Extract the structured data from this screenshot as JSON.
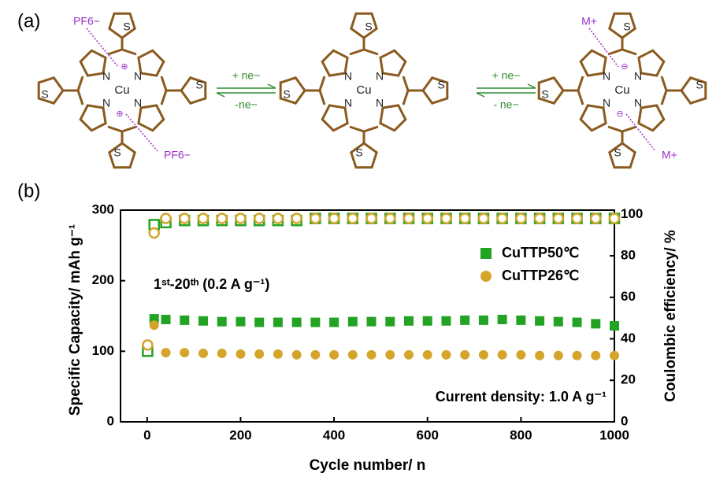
{
  "diagram": {
    "label": "(a)",
    "atoms": {
      "metal": "Cu",
      "nitrogen": "N",
      "sulfur": "S"
    },
    "counter_ions": {
      "anion": "PF6−",
      "cation": "M+"
    },
    "charges": {
      "positive": "⊕",
      "negative": "⊖"
    },
    "arrows": [
      {
        "forward": "+ ne−",
        "backward": "-ne−"
      },
      {
        "forward": "+ ne−",
        "backward": "- ne−"
      }
    ]
  },
  "chart_data": {
    "type": "scatter",
    "panel_label": "(b)",
    "x_label": "Cycle number/ n",
    "y_label": "Specific Capacity/ mAh g⁻¹",
    "y2_label": "Coulombic efficiency/ %",
    "annotations": [
      "1ˢᵗ-20ᵗʰ (0.2 A g⁻¹)",
      "Current density: 1.0 A g⁻¹"
    ],
    "x": [
      1,
      15,
      40,
      80,
      120,
      160,
      200,
      240,
      280,
      320,
      360,
      400,
      440,
      480,
      520,
      560,
      600,
      640,
      680,
      720,
      760,
      800,
      840,
      880,
      920,
      960,
      1000
    ],
    "xlim": [
      -57,
      1000
    ],
    "xticks": [
      0,
      200,
      400,
      600,
      800,
      1000
    ],
    "ylim": [
      0,
      300
    ],
    "yticks": [
      0,
      100,
      200,
      300
    ],
    "y2lim": [
      0,
      102
    ],
    "y2ticks": [
      0,
      20,
      40,
      60,
      80,
      100
    ],
    "legend": "upper right",
    "series": [
      {
        "name": "CuTTP50℃",
        "color": "#23a323",
        "marker": "square",
        "fill": "filled",
        "values": [
          100,
          146,
          145,
          144,
          143,
          142,
          142,
          141,
          141,
          141,
          141,
          141,
          142,
          142,
          142,
          143,
          143,
          143,
          144,
          144,
          145,
          144,
          143,
          142,
          141,
          139,
          136
        ]
      },
      {
        "name": "CuTTP26℃",
        "color": "#d4a52a",
        "marker": "circle",
        "fill": "filled",
        "values": [
          null,
          137,
          98,
          98,
          97,
          97,
          96,
          96,
          96,
          95,
          95,
          95,
          95,
          95,
          95,
          95,
          95,
          95,
          95,
          95,
          95,
          95,
          94,
          94,
          94,
          94,
          94
        ]
      },
      {
        "color": "#23a323",
        "marker": "square",
        "fill": "open",
        "axis": "y2",
        "values": [
          34,
          95,
          96,
          97,
          97,
          97,
          97,
          97,
          97,
          97,
          98,
          98,
          98,
          98,
          98,
          98,
          98,
          98,
          98,
          98,
          98,
          98,
          98,
          98,
          98,
          98,
          98
        ]
      },
      {
        "color": "#d4a52a",
        "marker": "circle",
        "fill": "open",
        "axis": "y2",
        "values": [
          37,
          91,
          98,
          98,
          98,
          98,
          98,
          98,
          98,
          98,
          98,
          98,
          98,
          98,
          98,
          98,
          98,
          98,
          98,
          98,
          98,
          98,
          98,
          98,
          98,
          98,
          98
        ]
      }
    ]
  }
}
